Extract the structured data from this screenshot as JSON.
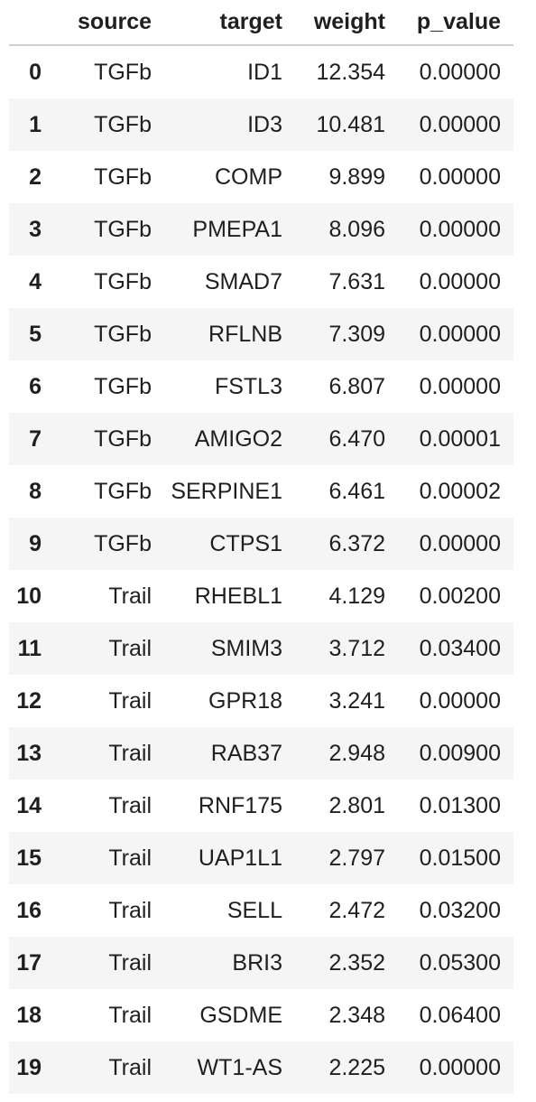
{
  "table": {
    "headers": [
      "",
      "source",
      "target",
      "weight",
      "p_value"
    ],
    "rows": [
      [
        "0",
        "TGFb",
        "ID1",
        "12.354",
        "0.00000"
      ],
      [
        "1",
        "TGFb",
        "ID3",
        "10.481",
        "0.00000"
      ],
      [
        "2",
        "TGFb",
        "COMP",
        "9.899",
        "0.00000"
      ],
      [
        "3",
        "TGFb",
        "PMEPA1",
        "8.096",
        "0.00000"
      ],
      [
        "4",
        "TGFb",
        "SMAD7",
        "7.631",
        "0.00000"
      ],
      [
        "5",
        "TGFb",
        "RFLNB",
        "7.309",
        "0.00000"
      ],
      [
        "6",
        "TGFb",
        "FSTL3",
        "6.807",
        "0.00000"
      ],
      [
        "7",
        "TGFb",
        "AMIGO2",
        "6.470",
        "0.00001"
      ],
      [
        "8",
        "TGFb",
        "SERPINE1",
        "6.461",
        "0.00002"
      ],
      [
        "9",
        "TGFb",
        "CTPS1",
        "6.372",
        "0.00000"
      ],
      [
        "10",
        "Trail",
        "RHEBL1",
        "4.129",
        "0.00200"
      ],
      [
        "11",
        "Trail",
        "SMIM3",
        "3.712",
        "0.03400"
      ],
      [
        "12",
        "Trail",
        "GPR18",
        "3.241",
        "0.00000"
      ],
      [
        "13",
        "Trail",
        "RAB37",
        "2.948",
        "0.00900"
      ],
      [
        "14",
        "Trail",
        "RNF175",
        "2.801",
        "0.01300"
      ],
      [
        "15",
        "Trail",
        "UAP1L1",
        "2.797",
        "0.01500"
      ],
      [
        "16",
        "Trail",
        "SELL",
        "2.472",
        "0.03200"
      ],
      [
        "17",
        "Trail",
        "BRI3",
        "2.352",
        "0.05300"
      ],
      [
        "18",
        "Trail",
        "GSDME",
        "2.348",
        "0.06400"
      ],
      [
        "19",
        "Trail",
        "WT1-AS",
        "2.225",
        "0.00000"
      ]
    ]
  },
  "colors": {
    "stripe": "#f5f5f5",
    "header_rule": "#cfcfcf",
    "text": "#1f1f1f"
  }
}
